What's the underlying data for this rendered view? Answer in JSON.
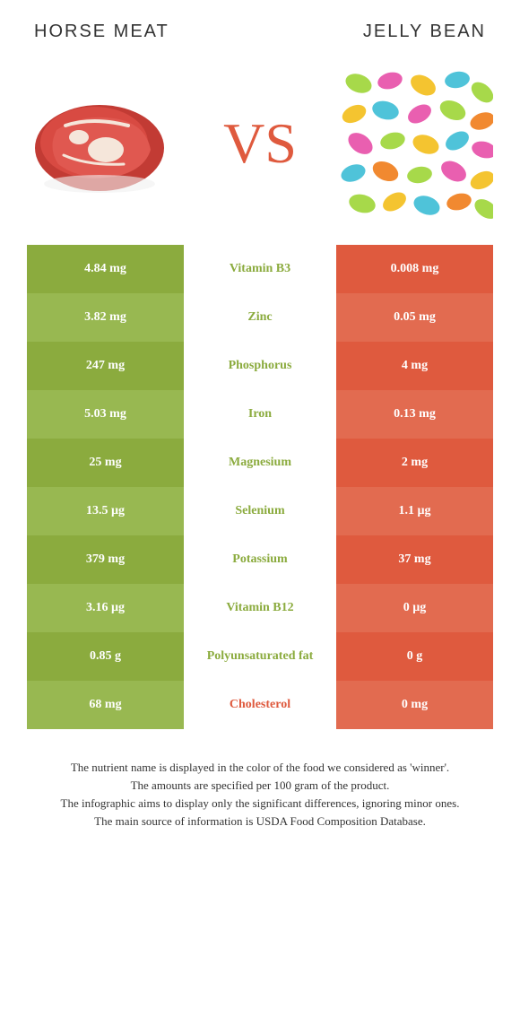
{
  "header": {
    "left_title": "HORSE MEAT",
    "right_title": "JELLY BEAN"
  },
  "vs_label": "VS",
  "colors": {
    "left": "#8bab3e",
    "right": "#df5a3e",
    "left_alt": "#98b851",
    "right_alt": "#e26b50",
    "mid_text_green": "#8bab3e",
    "mid_text_orange": "#df5a3e",
    "cell_text": "#ffffff",
    "background": "#ffffff"
  },
  "table": {
    "type": "table",
    "columns": [
      "left_value",
      "nutrient",
      "right_value"
    ],
    "rows": [
      {
        "left": "4.84 mg",
        "nutrient": "Vitamin B3",
        "right": "0.008 mg",
        "winner": "left"
      },
      {
        "left": "3.82 mg",
        "nutrient": "Zinc",
        "right": "0.05 mg",
        "winner": "left"
      },
      {
        "left": "247 mg",
        "nutrient": "Phosphorus",
        "right": "4 mg",
        "winner": "left"
      },
      {
        "left": "5.03 mg",
        "nutrient": "Iron",
        "right": "0.13 mg",
        "winner": "left"
      },
      {
        "left": "25 mg",
        "nutrient": "Magnesium",
        "right": "2 mg",
        "winner": "left"
      },
      {
        "left": "13.5 µg",
        "nutrient": "Selenium",
        "right": "1.1 µg",
        "winner": "left"
      },
      {
        "left": "379 mg",
        "nutrient": "Potassium",
        "right": "37 mg",
        "winner": "left"
      },
      {
        "left": "3.16 µg",
        "nutrient": "Vitamin B12",
        "right": "0 µg",
        "winner": "left"
      },
      {
        "left": "0.85 g",
        "nutrient": "Polyunsaturated fat",
        "right": "0 g",
        "winner": "left"
      },
      {
        "left": "68 mg",
        "nutrient": "Cholesterol",
        "right": "0 mg",
        "winner": "right"
      }
    ]
  },
  "footnotes": [
    "The nutrient name is displayed in the color of the food we considered as 'winner'.",
    "The amounts are specified per 100 gram of the product.",
    "The infographic aims to display only the significant differences, ignoring minor ones.",
    "The main source of information is USDA Food Composition Database."
  ]
}
